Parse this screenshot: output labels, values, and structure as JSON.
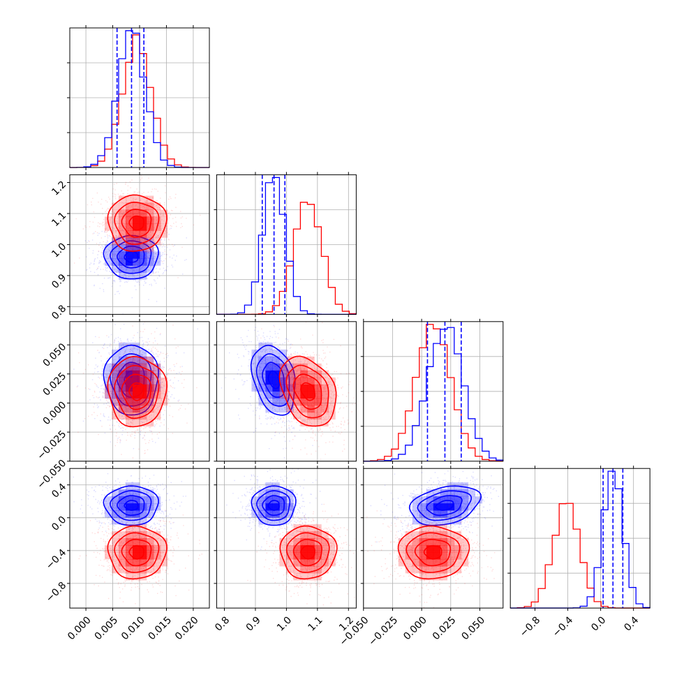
{
  "chart_data": {
    "type": "corner",
    "title": "",
    "grid": true,
    "parameters": [
      {
        "range": [
          -0.003,
          0.023
        ],
        "ticks": [
          0.0,
          0.005,
          0.01,
          0.015,
          0.02
        ],
        "tick_labels": [
          "0.000",
          "0.005",
          "0.010",
          "0.015",
          "0.020"
        ]
      },
      {
        "range": [
          0.775,
          1.225
        ],
        "ticks": [
          0.8,
          0.9,
          1.0,
          1.1,
          1.2
        ],
        "tick_labels": [
          "0.8",
          "0.9",
          "1.0",
          "1.1",
          "1.2"
        ]
      },
      {
        "range": [
          -0.05,
          0.07
        ],
        "ticks": [
          -0.05,
          -0.025,
          0.0,
          0.025,
          0.05
        ],
        "tick_labels": [
          "−0.050",
          "−0.025",
          "0.000",
          "0.025",
          "0.050"
        ]
      },
      {
        "range": [
          -1.1,
          0.6
        ],
        "ticks": [
          -0.8,
          -0.4,
          0.0,
          0.4
        ],
        "tick_labels": [
          "−0.8",
          "−0.4",
          "0.0",
          "0.4"
        ]
      }
    ],
    "series": [
      {
        "color": "#0000ff",
        "means": [
          0.0085,
          0.96,
          0.02,
          0.15
        ],
        "sigmas": [
          0.0025,
          0.035,
          0.015,
          0.12
        ],
        "quantiles": [
          [
            0.0058,
            0.0085,
            0.0108
          ],
          [
            0.922,
            0.96,
            0.995
          ],
          [
            0.005,
            0.02,
            0.034
          ],
          [
            0.03,
            0.15,
            0.27
          ]
        ],
        "correlations": {
          "0-1": 0.0,
          "0-2": 0.0,
          "1-2": -0.3,
          "0-3": 0.0,
          "1-3": 0.0,
          "2-3": 0.3
        }
      },
      {
        "color": "#ff0000",
        "means": [
          0.0095,
          1.07,
          0.01,
          -0.42
        ],
        "sigmas": [
          0.0027,
          0.045,
          0.015,
          0.16
        ],
        "correlations": {
          "0-1": 0.0,
          "0-2": 0.0,
          "1-2": -0.3,
          "0-3": 0.0,
          "1-3": 0.0,
          "2-3": 0.0
        }
      }
    ]
  }
}
